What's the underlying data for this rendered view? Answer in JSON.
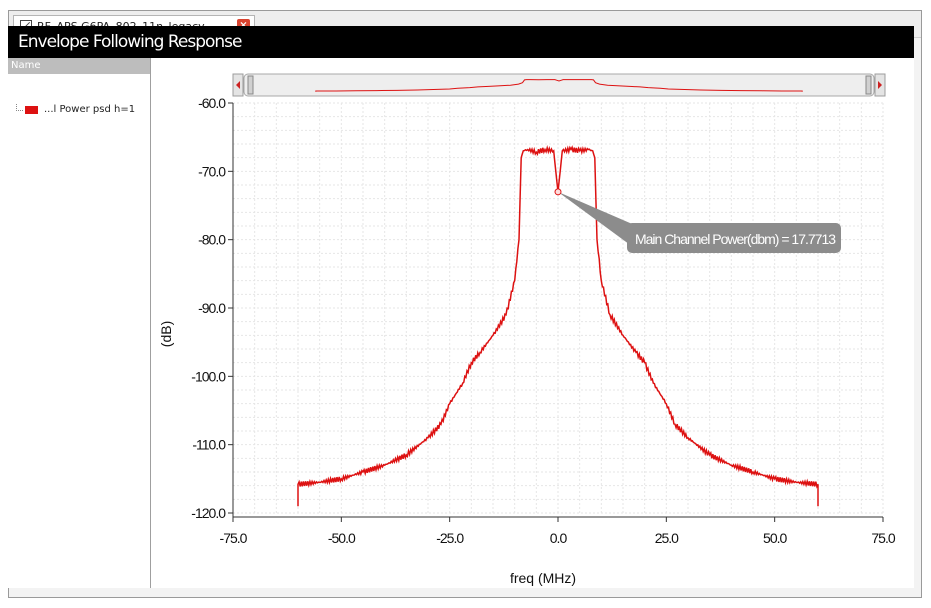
{
  "tab": {
    "title": "RF_APS G6PA_802_11n_legacy_..."
  },
  "window": {
    "title": "Envelope Following Response"
  },
  "legend": {
    "column_header": "Name",
    "items": [
      {
        "label": "...l Power psd h=1",
        "color": "#dd1111"
      }
    ]
  },
  "annotation": {
    "text": "Main Channel Power(dbm) = 17.7713",
    "x": 0,
    "y": -73
  },
  "chart_data": {
    "type": "line",
    "title": "",
    "xlabel": "freq (MHz)",
    "ylabel": "(dB)",
    "xlim": [
      -75,
      75
    ],
    "ylim": [
      -120,
      -60
    ],
    "xticks": [
      "-75.0",
      "-50.0",
      "-25.0",
      "0.0",
      "25.0",
      "50.0",
      "75.0"
    ],
    "yticks": [
      "-60.0",
      "-70.0",
      "-80.0",
      "-90.0",
      "-100.0",
      "-110.0",
      "-120.0"
    ],
    "grid": true,
    "series_color": "#dd1111",
    "series": [
      {
        "x": [
          -60,
          -60,
          -55,
          -50,
          -45,
          -40,
          -35,
          -30,
          -27,
          -25,
          -22,
          -20,
          -18,
          -15,
          -12,
          -10,
          -9,
          -8.5,
          -8,
          -7,
          -5,
          -3,
          -1,
          -0.5,
          0,
          0.5,
          1,
          3,
          5,
          7,
          8,
          8.5,
          9,
          10,
          12,
          15,
          18,
          20,
          22,
          25,
          27,
          30,
          35,
          40,
          45,
          50,
          55,
          60,
          60
        ],
        "y": [
          -119,
          -115.8,
          -115.5,
          -115,
          -114,
          -113,
          -111.5,
          -109,
          -107,
          -104,
          -101,
          -98,
          -96.5,
          -94,
          -91,
          -86,
          -80,
          -68,
          -67,
          -66.8,
          -67.2,
          -66.8,
          -67,
          -70,
          -73,
          -70,
          -67,
          -66.8,
          -67,
          -66.8,
          -67,
          -68,
          -80,
          -86,
          -91,
          -94,
          -96.5,
          -98,
          -101,
          -104,
          -107,
          -109,
          -111.5,
          -113,
          -114,
          -115,
          -115.5,
          -115.8,
          -119
        ]
      }
    ]
  }
}
